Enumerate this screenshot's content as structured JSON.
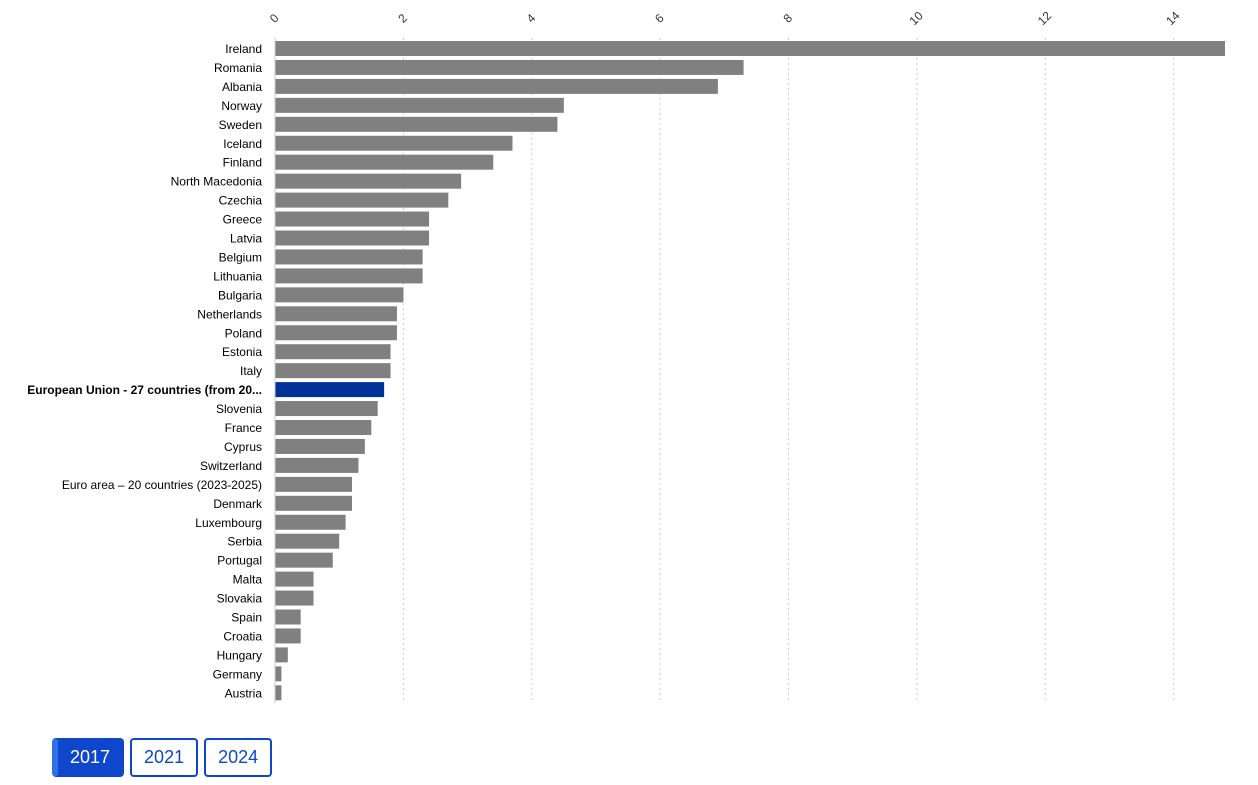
{
  "chart_data": {
    "type": "bar",
    "orientation": "horizontal",
    "title": "",
    "xlabel": "",
    "ylabel": "",
    "xlim": [
      0,
      14.8
    ],
    "x_ticks": [
      "0",
      "2",
      "4",
      "6",
      "8",
      "10",
      "12",
      "14"
    ],
    "grid": "vertical dashed",
    "colors": {
      "bar": "#808080",
      "highlight": "#003399"
    },
    "highlight": "European Union - 27 countries (from 20...",
    "categories": [
      "Ireland",
      "Romania",
      "Albania",
      "Norway",
      "Sweden",
      "Iceland",
      "Finland",
      "North Macedonia",
      "Czechia",
      "Greece",
      "Latvia",
      "Belgium",
      "Lithuania",
      "Bulgaria",
      "Netherlands",
      "Poland",
      "Estonia",
      "Italy",
      "European Union - 27 countries (from 20...",
      "Slovenia",
      "France",
      "Cyprus",
      "Switzerland",
      "Euro area – 20 countries (2023-2025)",
      "Denmark",
      "Luxembourg",
      "Serbia",
      "Portugal",
      "Malta",
      "Slovakia",
      "Spain",
      "Croatia",
      "Hungary",
      "Germany",
      "Austria"
    ],
    "values": [
      14.8,
      7.3,
      6.9,
      4.5,
      4.4,
      3.7,
      3.4,
      2.9,
      2.7,
      2.4,
      2.4,
      2.3,
      2.3,
      2.0,
      1.9,
      1.9,
      1.8,
      1.8,
      1.7,
      1.6,
      1.5,
      1.4,
      1.3,
      1.2,
      1.2,
      1.1,
      1.0,
      0.9,
      0.6,
      0.6,
      0.4,
      0.4,
      0.2,
      0.1,
      0.1
    ]
  },
  "year_selector": {
    "selected": "2017",
    "years": [
      "2017",
      "2021",
      "2024"
    ],
    "color": "#0e47cb"
  }
}
